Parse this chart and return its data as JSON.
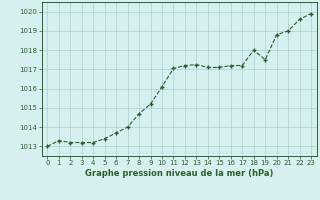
{
  "x": [
    0,
    1,
    2,
    3,
    4,
    5,
    6,
    7,
    8,
    9,
    10,
    11,
    12,
    13,
    14,
    15,
    16,
    17,
    18,
    19,
    20,
    21,
    22,
    23
  ],
  "y": [
    1013.0,
    1013.3,
    1013.2,
    1013.2,
    1013.2,
    1013.4,
    1013.7,
    1014.0,
    1014.7,
    1015.2,
    1016.1,
    1017.05,
    1017.2,
    1017.25,
    1017.1,
    1017.1,
    1017.2,
    1017.2,
    1018.0,
    1017.5,
    1018.8,
    1019.0,
    1019.6,
    1019.9
  ],
  "line_color": "#2d5f2d",
  "marker": "+",
  "marker_size": 3,
  "marker_edge_width": 1.0,
  "bg_color": "#d7f0ef",
  "grid_color": "#aacfcf",
  "xlabel": "Graphe pression niveau de la mer (hPa)",
  "xlabel_color": "#2d5f2d",
  "tick_color": "#2d5f2d",
  "ylim": [
    1012.5,
    1020.5
  ],
  "yticks": [
    1013,
    1014,
    1015,
    1016,
    1017,
    1018,
    1019,
    1020
  ],
  "xticks": [
    0,
    1,
    2,
    3,
    4,
    5,
    6,
    7,
    8,
    9,
    10,
    11,
    12,
    13,
    14,
    15,
    16,
    17,
    18,
    19,
    20,
    21,
    22,
    23
  ],
  "xtick_labels": [
    "0",
    "1",
    "2",
    "3",
    "4",
    "5",
    "6",
    "7",
    "8",
    "9",
    "10",
    "11",
    "12",
    "13",
    "14",
    "15",
    "16",
    "17",
    "18",
    "19",
    "20",
    "21",
    "22",
    "23"
  ],
  "line_width": 0.8,
  "axis_color": "#2d5f2d",
  "tick_fontsize": 5.0,
  "xlabel_fontsize": 6.0
}
